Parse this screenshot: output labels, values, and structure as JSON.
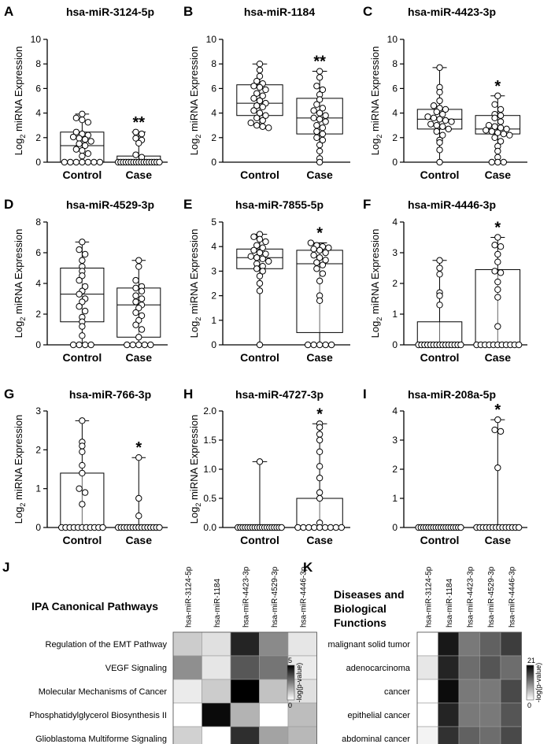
{
  "chart_data": [
    {
      "panel": "A",
      "type": "box",
      "title": "hsa-miR-3124-5p",
      "ylabel": "Log2 miRNA Expression",
      "ylim": [
        0,
        10
      ],
      "yticks": [
        0,
        2,
        4,
        6,
        8,
        10
      ],
      "categories": [
        "Control",
        "Case"
      ],
      "significance": "**",
      "groups": [
        {
          "name": "Control",
          "min": 0,
          "q1": 0,
          "median": 1.35,
          "q3": 2.45,
          "max": 3.92,
          "points": [
            3.92,
            3.6,
            3.45,
            3.25,
            2.45,
            2.3,
            2.2,
            2.05,
            1.95,
            1.85,
            1.7,
            1.5,
            1.35,
            1.05,
            0.95,
            0.7,
            0.5,
            0.0,
            0.0,
            0.0,
            0.0,
            0.0,
            0.0,
            0.0
          ]
        },
        {
          "name": "Case",
          "min": 0,
          "q1": 0,
          "median": 0,
          "q3": 0.5,
          "max": 2.45,
          "points": [
            2.45,
            2.3,
            1.95,
            1.8,
            1.55,
            0.6,
            0.4,
            0.0,
            0.0,
            0.0,
            0.0,
            0.0,
            0.0,
            0.0,
            0.0,
            0.0,
            0.0,
            0.0,
            0.0,
            0.0,
            0.0,
            0.0,
            0.0,
            0.0
          ]
        }
      ]
    },
    {
      "panel": "B",
      "type": "box",
      "title": "hsa-miR-1184",
      "ylabel": "Log2 miRNA Expression",
      "ylim": [
        0,
        10
      ],
      "yticks": [
        0,
        2,
        4,
        6,
        8,
        10
      ],
      "categories": [
        "Control",
        "Case"
      ],
      "significance": "**",
      "groups": [
        {
          "name": "Control",
          "min": 2.8,
          "q1": 3.8,
          "median": 4.8,
          "q3": 6.3,
          "max": 8.0,
          "points": [
            8.0,
            7.5,
            7.0,
            6.6,
            6.4,
            6.2,
            6.1,
            5.9,
            5.6,
            5.4,
            5.2,
            5.0,
            4.8,
            4.6,
            4.5,
            4.2,
            4.0,
            3.8,
            3.6,
            3.4,
            3.2,
            3.0,
            2.9,
            2.8
          ]
        },
        {
          "name": "Case",
          "min": 0,
          "q1": 2.3,
          "median": 3.6,
          "q3": 5.2,
          "max": 7.4,
          "points": [
            7.4,
            6.9,
            6.2,
            5.9,
            5.5,
            5.1,
            4.7,
            4.4,
            4.2,
            4.0,
            3.8,
            3.6,
            3.5,
            3.3,
            3.0,
            2.8,
            2.5,
            2.3,
            2.0,
            1.8,
            1.4,
            0.9,
            0.3,
            0.0
          ]
        }
      ]
    },
    {
      "panel": "C",
      "type": "box",
      "title": "hsa-miR-4423-3p",
      "ylabel": "Log2 miRNA Expression",
      "ylim": [
        0,
        10
      ],
      "yticks": [
        0,
        2,
        4,
        6,
        8,
        10
      ],
      "categories": [
        "Control",
        "Case"
      ],
      "significance": "*",
      "groups": [
        {
          "name": "Control",
          "min": 0,
          "q1": 2.7,
          "median": 3.5,
          "q3": 4.3,
          "max": 7.7,
          "points": [
            7.7,
            6.1,
            5.7,
            5.0,
            4.6,
            4.4,
            4.3,
            4.1,
            3.9,
            3.7,
            3.6,
            3.5,
            3.4,
            3.3,
            3.1,
            3.0,
            2.9,
            2.7,
            2.5,
            2.2,
            1.8,
            1.6,
            1.0,
            0.0
          ]
        },
        {
          "name": "Case",
          "min": 0,
          "q1": 2.3,
          "median": 2.7,
          "q3": 3.8,
          "max": 5.4,
          "points": [
            5.4,
            4.7,
            4.3,
            3.9,
            3.8,
            3.6,
            3.3,
            3.0,
            2.9,
            2.8,
            2.7,
            2.6,
            2.5,
            2.4,
            2.3,
            2.2,
            2.0,
            1.7,
            1.3,
            0.9,
            0.4,
            0.0,
            0.0,
            0.0
          ]
        }
      ]
    },
    {
      "panel": "D",
      "type": "box",
      "title": "hsa-miR-4529-3p",
      "ylabel": "Log2 miRNA Expression",
      "ylim": [
        0,
        8
      ],
      "yticks": [
        0,
        2,
        4,
        6,
        8
      ],
      "categories": [
        "Control",
        "Case"
      ],
      "significance": "",
      "groups": [
        {
          "name": "Control",
          "min": 0,
          "q1": 1.5,
          "median": 3.3,
          "q3": 5.0,
          "max": 6.7,
          "points": [
            6.7,
            6.2,
            5.9,
            5.5,
            5.1,
            4.8,
            4.5,
            4.2,
            3.8,
            3.5,
            3.3,
            3.0,
            2.8,
            2.5,
            2.2,
            1.8,
            1.5,
            1.2,
            0.6,
            0.0,
            0.0,
            0.0,
            0.0
          ]
        },
        {
          "name": "Case",
          "min": 0,
          "q1": 0.5,
          "median": 2.6,
          "q3": 3.7,
          "max": 5.5,
          "points": [
            5.5,
            5.1,
            4.2,
            3.8,
            3.7,
            3.5,
            3.2,
            3.0,
            2.8,
            2.6,
            2.4,
            2.1,
            1.9,
            1.6,
            1.3,
            1.0,
            0.5,
            0.0,
            0.0,
            0.0,
            0.0,
            0.0
          ]
        }
      ]
    },
    {
      "panel": "E",
      "type": "box",
      "title": "hsa-miR-7855-5p",
      "ylabel": "Log2 miRNA Expression",
      "ylim": [
        0,
        5
      ],
      "yticks": [
        0,
        1,
        2,
        3,
        4,
        5
      ],
      "categories": [
        "Control",
        "Case"
      ],
      "significance": "*",
      "groups": [
        {
          "name": "Control",
          "min": 0,
          "q1": 3.1,
          "median": 3.55,
          "q3": 3.9,
          "max": 4.5,
          "points": [
            4.5,
            4.4,
            4.3,
            4.2,
            4.05,
            3.95,
            3.85,
            3.75,
            3.7,
            3.6,
            3.55,
            3.5,
            3.4,
            3.3,
            3.2,
            3.1,
            3.0,
            2.8,
            2.5,
            2.2,
            0.0
          ]
        },
        {
          "name": "Case",
          "min": 0,
          "q1": 0.5,
          "median": 3.3,
          "q3": 3.85,
          "max": 4.15,
          "points": [
            4.15,
            4.05,
            4.0,
            3.95,
            3.9,
            3.85,
            3.75,
            3.65,
            3.55,
            3.45,
            3.35,
            3.25,
            3.1,
            2.9,
            2.6,
            2.0,
            1.8,
            0.0,
            0.0,
            0.0,
            0.0,
            0.0
          ]
        }
      ]
    },
    {
      "panel": "F",
      "type": "box",
      "title": "hsa-miR-4446-3p",
      "ylabel": "Log2 miRNA Expression",
      "ylim": [
        0,
        4
      ],
      "yticks": [
        0,
        1,
        2,
        3,
        4
      ],
      "categories": [
        "Control",
        "Case"
      ],
      "significance": "*",
      "groups": [
        {
          "name": "Control",
          "min": 0,
          "q1": 0,
          "median": 0,
          "q3": 0.75,
          "max": 2.75,
          "points": [
            2.75,
            2.5,
            2.3,
            1.7,
            1.6,
            1.3,
            0.0,
            0.0,
            0.0,
            0.0,
            0.0,
            0.0,
            0.0,
            0.0,
            0.0,
            0.0,
            0.0,
            0.0,
            0.0,
            0.0,
            0.0
          ]
        },
        {
          "name": "Case",
          "min": 0,
          "q1": 0,
          "median": 0,
          "q3": 2.45,
          "max": 3.5,
          "points": [
            3.5,
            3.25,
            3.2,
            2.95,
            2.7,
            2.4,
            2.35,
            2.05,
            1.8,
            1.55,
            0.6,
            0.0,
            0.0,
            0.0,
            0.0,
            0.0,
            0.0,
            0.0,
            0.0,
            0.0,
            0.0,
            0.0
          ]
        }
      ]
    },
    {
      "panel": "G",
      "type": "box",
      "title": "hsa-miR-766-3p",
      "ylabel": "Log2 miRNA Expression",
      "ylim": [
        0,
        3
      ],
      "yticks": [
        0,
        1,
        2,
        3
      ],
      "categories": [
        "Control",
        "Case"
      ],
      "significance": "*",
      "groups": [
        {
          "name": "Control",
          "min": 0,
          "q1": 0,
          "median": 0,
          "q3": 1.4,
          "max": 2.75,
          "points": [
            2.75,
            2.2,
            2.1,
            1.95,
            1.6,
            1.4,
            1.0,
            0.9,
            0.6,
            0.0,
            0.0,
            0.0,
            0.0,
            0.0,
            0.0,
            0.0,
            0.0,
            0.0,
            0.0,
            0.0
          ]
        },
        {
          "name": "Case",
          "min": 0,
          "q1": 0,
          "median": 0,
          "q3": 0,
          "max": 1.8,
          "points": [
            1.8,
            0.75,
            0.3,
            0.0,
            0.0,
            0.0,
            0.0,
            0.0,
            0.0,
            0.0,
            0.0,
            0.0,
            0.0,
            0.0,
            0.0,
            0.0,
            0.0,
            0.0
          ]
        }
      ]
    },
    {
      "panel": "H",
      "type": "box",
      "title": "hsa-miR-4727-3p",
      "ylabel": "Log2 miRNA Expression",
      "ylim": [
        0,
        2.0
      ],
      "yticks": [
        0.0,
        0.5,
        1.0,
        1.5,
        2.0
      ],
      "categories": [
        "Control",
        "Case"
      ],
      "significance": "*",
      "groups": [
        {
          "name": "Control",
          "min": 0,
          "q1": 0,
          "median": 0,
          "q3": 0,
          "max": 1.13,
          "points": [
            1.13,
            0.0,
            0.0,
            0.0,
            0.0,
            0.0,
            0.0,
            0.0,
            0.0,
            0.0,
            0.0,
            0.0,
            0.0,
            0.0,
            0.0,
            0.0,
            0.0,
            0.0,
            0.0,
            0.0
          ]
        },
        {
          "name": "Case",
          "min": 0,
          "q1": 0,
          "median": 0,
          "q3": 0.5,
          "max": 1.78,
          "points": [
            1.78,
            1.72,
            1.6,
            1.5,
            1.3,
            1.05,
            0.85,
            0.6,
            0.5,
            0.08,
            0.0,
            0.0,
            0.0,
            0.0,
            0.0,
            0.0,
            0.0,
            0.0,
            0.0
          ]
        }
      ]
    },
    {
      "panel": "I",
      "type": "box",
      "title": "hsa-miR-208a-5p",
      "ylabel": "",
      "ylim": [
        0,
        4
      ],
      "yticks": [
        0,
        1,
        2,
        3,
        4
      ],
      "categories": [
        "Control",
        "Case"
      ],
      "significance": "*",
      "groups": [
        {
          "name": "Control",
          "min": 0,
          "q1": 0,
          "median": 0,
          "q3": 0,
          "max": 0,
          "points": [
            0.0,
            0.0,
            0.0,
            0.0,
            0.0,
            0.0,
            0.0,
            0.0,
            0.0,
            0.0,
            0.0,
            0.0,
            0.0,
            0.0,
            0.0,
            0.0,
            0.0,
            0.0
          ]
        },
        {
          "name": "Case",
          "min": 0,
          "q1": 0,
          "median": 0,
          "q3": 0,
          "max": 3.7,
          "points": [
            3.7,
            3.35,
            3.3,
            2.05,
            0.0,
            0.0,
            0.0,
            0.0,
            0.0,
            0.0,
            0.0,
            0.0,
            0.0,
            0.0,
            0.0,
            0.0,
            0.0,
            0.0
          ]
        }
      ]
    },
    {
      "panel": "J",
      "type": "heatmap",
      "title": "IPA Canonical Pathways",
      "columns": [
        "hsa-miR-3124-5p",
        "hsa-miR-1184",
        "hsa-miR-4423-3p",
        "hsa-miR-4529-3p",
        "hsa-miR-4446-3p"
      ],
      "rows": [
        "Regulation of the EMT Pathway",
        "VEGF Signaling",
        "Molecular Mechanisms of Cancer",
        "Phosphatidylglycerol Biosynthesis II",
        "Glioblastoma Multiforme Signaling"
      ],
      "values": [
        [
          1.0,
          0.6,
          4.3,
          2.3,
          0.5
        ],
        [
          2.2,
          0.5,
          3.3,
          2.7,
          0.4
        ],
        [
          0.4,
          1.0,
          5.0,
          1.2,
          0.6
        ],
        [
          0.0,
          4.8,
          1.5,
          0.0,
          1.3
        ],
        [
          0.9,
          0.0,
          4.1,
          1.8,
          1.4
        ]
      ],
      "scale": {
        "min": 0,
        "max": 5,
        "label": "-log(p-value)"
      }
    },
    {
      "panel": "K",
      "type": "heatmap",
      "title": "Diseases and Biological Functions",
      "columns": [
        "hsa-miR-3124-5p",
        "hsa-miR-1184",
        "hsa-miR-4423-3p",
        "hsa-miR-4529-3p",
        "hsa-miR-4446-3p"
      ],
      "rows": [
        "malignant solid tumor",
        "adenocarcinoma",
        "cancer",
        "epithelial cancer",
        "abdominal cancer"
      ],
      "values": [
        [
          0.0,
          19.0,
          11.0,
          13.0,
          16.0
        ],
        [
          2.0,
          18.0,
          12.0,
          14.0,
          12.0
        ],
        [
          0.0,
          20.0,
          11.0,
          11.0,
          15.0
        ],
        [
          0.0,
          18.0,
          11.0,
          11.0,
          14.0
        ],
        [
          1.0,
          17.0,
          13.0,
          12.0,
          15.0
        ]
      ],
      "scale": {
        "min": 0,
        "max": 21,
        "label": "-log(p-value)"
      }
    }
  ]
}
